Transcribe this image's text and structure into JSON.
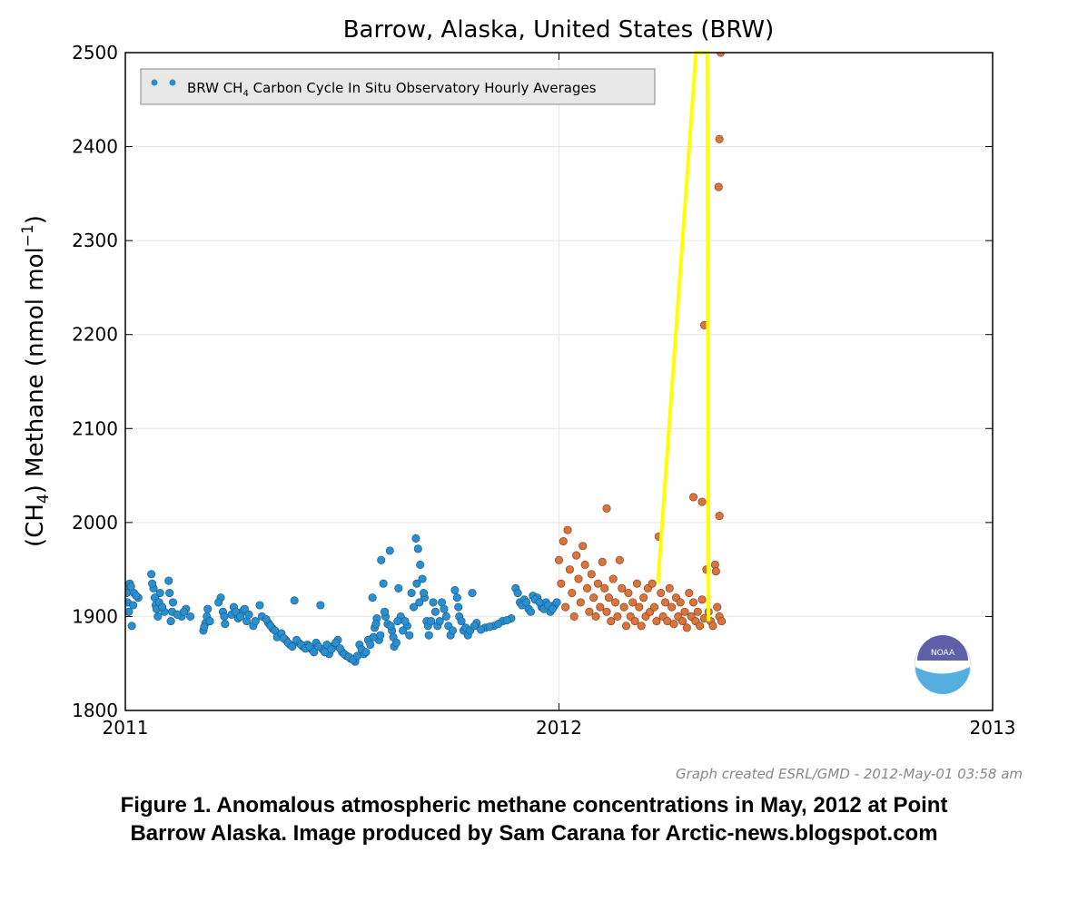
{
  "chart_data": {
    "type": "scatter",
    "title": "Barrow, Alaska, United States (BRW)",
    "ylabel_pre": "(CH",
    "ylabel_sub": "4",
    "ylabel_mid": ") Methane (nmol mol",
    "ylabel_sup": "−1",
    "ylabel_post": ")",
    "xlim": [
      2011.0,
      2013.0
    ],
    "ylim": [
      1800,
      2500
    ],
    "x_ticks": [
      {
        "value": 2011,
        "label": "2011"
      },
      {
        "value": 2012,
        "label": "2012"
      },
      {
        "value": 2013,
        "label": "2013"
      }
    ],
    "y_ticks": [
      {
        "value": 1800,
        "label": "1800"
      },
      {
        "value": 1900,
        "label": "1900"
      },
      {
        "value": 2000,
        "label": "2000"
      },
      {
        "value": 2100,
        "label": "2100"
      },
      {
        "value": 2200,
        "label": "2200"
      },
      {
        "value": 2300,
        "label": "2300"
      },
      {
        "value": 2400,
        "label": "2400"
      },
      {
        "value": 2500,
        "label": "2500"
      }
    ],
    "grid": true,
    "legend_position": "top-left",
    "legend": {
      "prefix": "BRW CH",
      "sub": "4",
      "suffix": " Carbon Cycle In Situ Observatory Hourly Averages"
    },
    "series": [
      {
        "color": "#2a8fd0",
        "edge": "#1a5f8f",
        "points": [
          [
            2011.0,
            1930
          ],
          [
            2011.005,
            1915
          ],
          [
            2011.01,
            1935
          ],
          [
            2011.015,
            1890
          ],
          [
            2011.02,
            1925
          ],
          [
            2011.03,
            1920
          ],
          [
            2011.06,
            1945
          ],
          [
            2011.065,
            1930
          ],
          [
            2011.07,
            1912
          ],
          [
            2011.075,
            1900
          ],
          [
            2011.08,
            1925
          ],
          [
            2011.09,
            1905
          ],
          [
            2011.1,
            1938
          ],
          [
            2011.105,
            1895
          ],
          [
            2011.11,
            1915
          ],
          [
            2011.13,
            1900
          ],
          [
            2011.14,
            1908
          ],
          [
            2011.18,
            1885
          ],
          [
            2011.185,
            1893
          ],
          [
            2011.19,
            1908
          ],
          [
            2011.22,
            1920
          ],
          [
            2011.225,
            1905
          ],
          [
            2011.23,
            1892
          ],
          [
            2011.25,
            1910
          ],
          [
            2011.26,
            1898
          ],
          [
            2011.27,
            1905
          ],
          [
            2011.28,
            1895
          ],
          [
            2011.295,
            1890
          ],
          [
            2011.31,
            1912
          ],
          [
            2011.33,
            1893
          ],
          [
            2011.34,
            1887
          ],
          [
            2011.355,
            1880
          ],
          [
            2011.37,
            1875
          ],
          [
            2011.38,
            1870
          ],
          [
            2011.39,
            1917
          ],
          [
            2011.4,
            1872
          ],
          [
            2011.41,
            1868
          ],
          [
            2011.42,
            1870
          ],
          [
            2011.43,
            1865
          ],
          [
            2011.44,
            1872
          ],
          [
            2011.45,
            1912
          ],
          [
            2011.455,
            1865
          ],
          [
            2011.47,
            1860
          ],
          [
            2011.48,
            1868
          ],
          [
            2011.49,
            1875
          ],
          [
            2011.5,
            1862
          ],
          [
            2011.51,
            1858
          ],
          [
            2011.52,
            1855
          ],
          [
            2011.53,
            1852
          ],
          [
            2011.54,
            1870
          ],
          [
            2011.55,
            1860
          ],
          [
            2011.56,
            1875
          ],
          [
            2011.57,
            1920
          ],
          [
            2011.575,
            1888
          ],
          [
            2011.58,
            1898
          ],
          [
            2011.585,
            1875
          ],
          [
            2011.59,
            1960
          ],
          [
            2011.595,
            1935
          ],
          [
            2011.6,
            1900
          ],
          [
            2011.61,
            1970
          ],
          [
            2011.615,
            1885
          ],
          [
            2011.62,
            1868
          ],
          [
            2011.63,
            1930
          ],
          [
            2011.635,
            1900
          ],
          [
            2011.65,
            1890
          ],
          [
            2011.66,
            1925
          ],
          [
            2011.67,
            1983
          ],
          [
            2011.675,
            1972
          ],
          [
            2011.68,
            1955
          ],
          [
            2011.685,
            1940
          ],
          [
            2011.69,
            1920
          ],
          [
            2011.695,
            1895
          ],
          [
            2011.7,
            1880
          ],
          [
            2011.71,
            1915
          ],
          [
            2011.72,
            1890
          ],
          [
            2011.73,
            1915
          ],
          [
            2011.74,
            1900
          ],
          [
            2011.75,
            1880
          ],
          [
            2011.76,
            1928
          ],
          [
            2011.765,
            1920
          ],
          [
            2011.77,
            1900
          ],
          [
            2011.78,
            1885
          ],
          [
            2011.79,
            1880
          ],
          [
            2011.8,
            1925
          ],
          [
            2011.81,
            1893
          ],
          [
            2011.83,
            1888
          ],
          [
            2011.85,
            1890
          ],
          [
            2011.87,
            1895
          ],
          [
            2011.89,
            1898
          ],
          [
            2011.9,
            1930
          ],
          [
            2011.91,
            1915
          ],
          [
            2011.92,
            1918
          ],
          [
            2011.93,
            1908
          ],
          [
            2011.94,
            1922
          ],
          [
            2011.95,
            1920
          ],
          [
            2011.96,
            1910
          ],
          [
            2011.97,
            1915
          ],
          [
            2011.98,
            1905
          ],
          [
            2011.99,
            1912
          ],
          [
            2011.003,
            1925
          ],
          [
            2011.008,
            1905
          ],
          [
            2011.013,
            1932
          ],
          [
            2011.018,
            1912
          ],
          [
            2011.025,
            1922
          ],
          [
            2011.062,
            1935
          ],
          [
            2011.068,
            1920
          ],
          [
            2011.072,
            1908
          ],
          [
            2011.078,
            1915
          ],
          [
            2011.085,
            1910
          ],
          [
            2011.102,
            1925
          ],
          [
            2011.108,
            1905
          ],
          [
            2011.12,
            1902
          ],
          [
            2011.135,
            1905
          ],
          [
            2011.15,
            1900
          ],
          [
            2011.182,
            1889
          ],
          [
            2011.188,
            1900
          ],
          [
            2011.195,
            1895
          ],
          [
            2011.215,
            1915
          ],
          [
            2011.228,
            1900
          ],
          [
            2011.245,
            1902
          ],
          [
            2011.255,
            1905
          ],
          [
            2011.265,
            1900
          ],
          [
            2011.275,
            1908
          ],
          [
            2011.285,
            1902
          ],
          [
            2011.3,
            1895
          ],
          [
            2011.315,
            1900
          ],
          [
            2011.325,
            1897
          ],
          [
            2011.335,
            1890
          ],
          [
            2011.345,
            1885
          ],
          [
            2011.35,
            1878
          ],
          [
            2011.36,
            1882
          ],
          [
            2011.365,
            1877
          ],
          [
            2011.375,
            1872
          ],
          [
            2011.385,
            1868
          ],
          [
            2011.395,
            1875
          ],
          [
            2011.405,
            1870
          ],
          [
            2011.415,
            1866
          ],
          [
            2011.425,
            1868
          ],
          [
            2011.435,
            1862
          ],
          [
            2011.445,
            1868
          ],
          [
            2011.46,
            1862
          ],
          [
            2011.465,
            1870
          ],
          [
            2011.475,
            1865
          ],
          [
            2011.485,
            1872
          ],
          [
            2011.495,
            1866
          ],
          [
            2011.505,
            1860
          ],
          [
            2011.515,
            1857
          ],
          [
            2011.525,
            1854
          ],
          [
            2011.535,
            1858
          ],
          [
            2011.545,
            1865
          ],
          [
            2011.555,
            1862
          ],
          [
            2011.565,
            1870
          ],
          [
            2011.572,
            1878
          ],
          [
            2011.578,
            1892
          ],
          [
            2011.588,
            1880
          ],
          [
            2011.598,
            1905
          ],
          [
            2011.605,
            1892
          ],
          [
            2011.612,
            1890
          ],
          [
            2011.618,
            1878
          ],
          [
            2011.625,
            1872
          ],
          [
            2011.628,
            1895
          ],
          [
            2011.64,
            1885
          ],
          [
            2011.645,
            1895
          ],
          [
            2011.655,
            1880
          ],
          [
            2011.665,
            1910
          ],
          [
            2011.672,
            1935
          ],
          [
            2011.678,
            1915
          ],
          [
            2011.688,
            1925
          ],
          [
            2011.698,
            1890
          ],
          [
            2011.705,
            1895
          ],
          [
            2011.715,
            1905
          ],
          [
            2011.725,
            1895
          ],
          [
            2011.735,
            1908
          ],
          [
            2011.745,
            1890
          ],
          [
            2011.755,
            1885
          ],
          [
            2011.768,
            1910
          ],
          [
            2011.775,
            1895
          ],
          [
            2011.785,
            1888
          ],
          [
            2011.795,
            1885
          ],
          [
            2011.805,
            1890
          ],
          [
            2011.82,
            1886
          ],
          [
            2011.84,
            1889
          ],
          [
            2011.86,
            1892
          ],
          [
            2011.88,
            1896
          ],
          [
            2011.905,
            1925
          ],
          [
            2011.915,
            1912
          ],
          [
            2011.925,
            1915
          ],
          [
            2011.935,
            1905
          ],
          [
            2011.945,
            1918
          ],
          [
            2011.955,
            1915
          ],
          [
            2011.965,
            1908
          ],
          [
            2011.975,
            1912
          ],
          [
            2011.985,
            1908
          ],
          [
            2011.995,
            1915
          ]
        ]
      },
      {
        "color": "#d8743c",
        "edge": "#8a4420",
        "points": [
          [
            2012.0,
            1960
          ],
          [
            2012.005,
            1935
          ],
          [
            2012.01,
            1980
          ],
          [
            2012.015,
            1910
          ],
          [
            2012.02,
            1992
          ],
          [
            2012.025,
            1950
          ],
          [
            2012.03,
            1925
          ],
          [
            2012.035,
            1900
          ],
          [
            2012.04,
            1965
          ],
          [
            2012.045,
            1940
          ],
          [
            2012.05,
            1915
          ],
          [
            2012.055,
            1975
          ],
          [
            2012.06,
            1955
          ],
          [
            2012.065,
            1930
          ],
          [
            2012.07,
            1905
          ],
          [
            2012.075,
            1945
          ],
          [
            2012.08,
            1920
          ],
          [
            2012.085,
            1900
          ],
          [
            2012.09,
            1935
          ],
          [
            2012.095,
            1910
          ],
          [
            2012.1,
            1958
          ],
          [
            2012.105,
            1930
          ],
          [
            2012.11,
            1905
          ],
          [
            2012.115,
            1920
          ],
          [
            2012.12,
            1895
          ],
          [
            2012.125,
            1940
          ],
          [
            2012.13,
            1915
          ],
          [
            2012.135,
            1900
          ],
          [
            2012.14,
            1960
          ],
          [
            2012.145,
            1930
          ],
          [
            2012.15,
            1910
          ],
          [
            2012.155,
            1890
          ],
          [
            2012.16,
            1925
          ],
          [
            2012.165,
            1900
          ],
          [
            2012.17,
            1915
          ],
          [
            2012.175,
            1895
          ],
          [
            2012.18,
            1935
          ],
          [
            2012.185,
            1910
          ],
          [
            2012.19,
            1890
          ],
          [
            2012.195,
            1920
          ],
          [
            2012.2,
            1900
          ],
          [
            2012.205,
            1930
          ],
          [
            2012.21,
            1905
          ],
          [
            2012.215,
            1935
          ],
          [
            2012.22,
            1910
          ],
          [
            2012.225,
            1895
          ],
          [
            2012.23,
            1985
          ],
          [
            2012.235,
            1925
          ],
          [
            2012.24,
            1900
          ],
          [
            2012.245,
            1915
          ],
          [
            2012.25,
            1895
          ],
          [
            2012.255,
            1930
          ],
          [
            2012.26,
            1910
          ],
          [
            2012.265,
            1892
          ],
          [
            2012.27,
            1920
          ],
          [
            2012.275,
            1900
          ],
          [
            2012.28,
            1915
          ],
          [
            2012.285,
            1895
          ],
          [
            2012.29,
            1905
          ],
          [
            2012.295,
            1888
          ],
          [
            2012.3,
            1925
          ],
          [
            2012.305,
            1900
          ],
          [
            2012.31,
            1915
          ],
          [
            2012.315,
            1895
          ],
          [
            2012.32,
            1905
          ],
          [
            2012.325,
            1890
          ],
          [
            2012.33,
            1918
          ],
          [
            2012.335,
            1898
          ],
          [
            2012.34,
            1950
          ],
          [
            2012.345,
            1905
          ],
          [
            2012.35,
            1895
          ],
          [
            2012.355,
            1890
          ],
          [
            2012.36,
            1955
          ],
          [
            2012.362,
            1948
          ],
          [
            2012.365,
            1910
          ],
          [
            2012.37,
            1900
          ],
          [
            2012.375,
            1895
          ],
          [
            2012.11,
            2015
          ],
          [
            2012.31,
            2027
          ],
          [
            2012.33,
            2022
          ],
          [
            2012.37,
            2007
          ],
          [
            2012.335,
            2210
          ],
          [
            2012.368,
            2357
          ],
          [
            2012.37,
            2408
          ],
          [
            2012.373,
            2500
          ]
        ]
      }
    ],
    "annotation_polygon": [
      [
        2012.228,
        1935
      ],
      [
        2012.316,
        2500
      ],
      [
        2012.342,
        2500
      ],
      [
        2012.345,
        1895
      ]
    ],
    "annotation_color": "#ffff00"
  },
  "credit": "Graph created ESRL/GMD - 2012-May-01 03:58 am",
  "caption": {
    "line1": "Figure 1. Anomalous atmospheric methane concentrations in May, 2012 at Point",
    "line2": "Barrow Alaska. Image produced by Sam Carana for Arctic-news.blogspot.com"
  },
  "logo": {
    "text": "NOAA",
    "top_color": "#5f5fa8",
    "bottom_color": "#55aee0"
  }
}
